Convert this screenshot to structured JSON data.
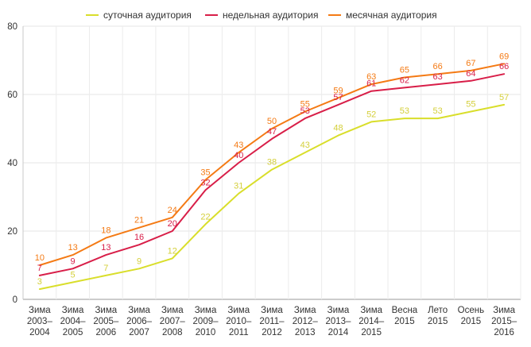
{
  "chart_data": {
    "type": "line",
    "title": "",
    "xlabel": "",
    "ylabel": "",
    "ylim": [
      0,
      80
    ],
    "yticks": [
      0,
      20,
      40,
      60,
      80
    ],
    "grid": true,
    "legend_position": "top-center",
    "categories": [
      [
        "Зима",
        "2003–",
        "2004"
      ],
      [
        "Зима",
        "2004–",
        "2005"
      ],
      [
        "Зима",
        "2005–",
        "2006"
      ],
      [
        "Зима",
        "2006–",
        "2007"
      ],
      [
        "Зима",
        "2007–",
        "2008"
      ],
      [
        "Зима",
        "2009–",
        "2010"
      ],
      [
        "Зима",
        "2010–",
        "2011"
      ],
      [
        "Зима",
        "2011–",
        "2012"
      ],
      [
        "Зима",
        "2012–",
        "2013"
      ],
      [
        "Зима",
        "2013–",
        "2014"
      ],
      [
        "Зима",
        "2014–",
        "2015"
      ],
      [
        "Весна",
        "2015"
      ],
      [
        "Лето",
        "2015"
      ],
      [
        "Осень",
        "2015"
      ],
      [
        "Зима",
        "2015–",
        "2016"
      ]
    ],
    "series": [
      {
        "name": "суточная аудитория",
        "color": "#d9de2b",
        "label_color": "#d4cf3a",
        "values": [
          3,
          5,
          7,
          9,
          12,
          22,
          31,
          38,
          43,
          48,
          52,
          53,
          53,
          55,
          57
        ]
      },
      {
        "name": "недельная аудитория",
        "color": "#d81e48",
        "label_color": "#d81e48",
        "values": [
          7,
          9,
          13,
          16,
          20,
          32,
          40,
          47,
          53,
          57,
          61,
          62,
          63,
          64,
          66
        ]
      },
      {
        "name": "месячная аудитория",
        "color": "#f47a14",
        "label_color": "#f47a14",
        "values": [
          10,
          13,
          18,
          21,
          24,
          35,
          43,
          50,
          55,
          59,
          63,
          65,
          66,
          67,
          69
        ]
      }
    ]
  }
}
